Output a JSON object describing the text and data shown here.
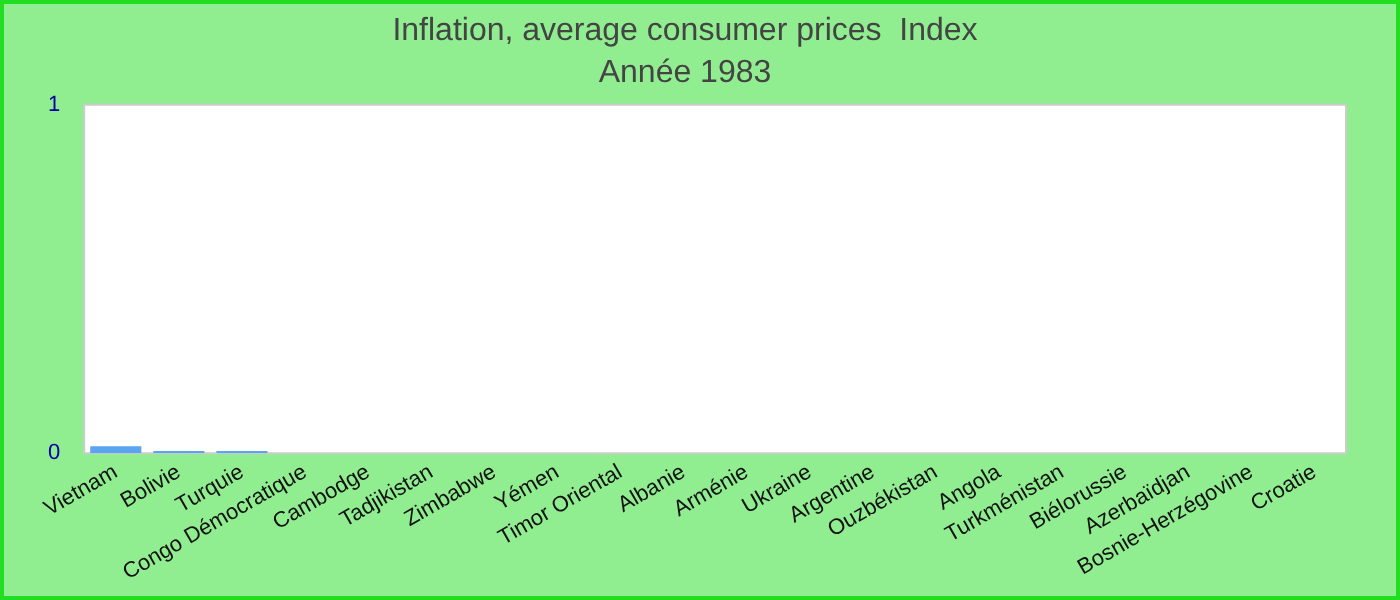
{
  "chart_data": {
    "type": "bar",
    "title": "Inflation, average consumer prices  Index",
    "subtitle": "Année 1983",
    "categories": [
      "Vietnam",
      "Bolivie",
      "Turquie",
      "Congo Démocratique",
      "Cambodge",
      "Tadjikistan",
      "Zimbabwe",
      "Yémen",
      "Timor Oriental",
      "Albanie",
      "Arménie",
      "Ukraine",
      "Argentine",
      "Ouzbékistan",
      "Angola",
      "Turkménistan",
      "Biélorussie",
      "Azerbaïdjan",
      "Bosnie-Herzégovine",
      "Croatie"
    ],
    "values": [
      0.02,
      0.006,
      0.006,
      0,
      0,
      0,
      0,
      0,
      0,
      0,
      0,
      0,
      0,
      0,
      0,
      0,
      0,
      0,
      0,
      0
    ],
    "color": "#5aa5f0",
    "ylim": [
      0,
      1
    ],
    "yticks": [
      0,
      1
    ],
    "grid": false,
    "legend": false
  }
}
